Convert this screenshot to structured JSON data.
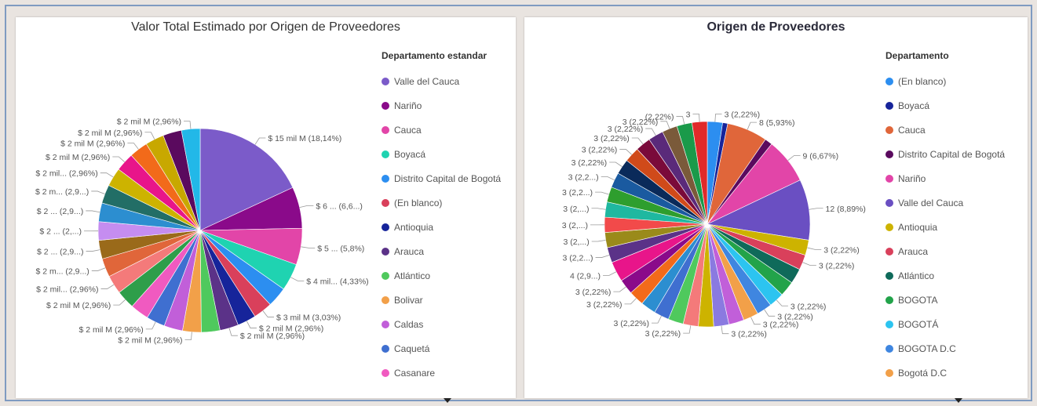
{
  "panels": {
    "left": {
      "legend_title": "Departamento estandar",
      "legend": [
        {
          "label": "Valle del Cauca",
          "color": "#7b5bc9"
        },
        {
          "label": "Nariño",
          "color": "#8a0a8a"
        },
        {
          "label": "Cauca",
          "color": "#e245a8"
        },
        {
          "label": "Boyacá",
          "color": "#1fd3b1"
        },
        {
          "label": "Distrito Capital de Bogotá",
          "color": "#2c8ef0"
        },
        {
          "label": "(En blanco)",
          "color": "#d9405b"
        },
        {
          "label": "Antioquia",
          "color": "#16249a"
        },
        {
          "label": "Arauca",
          "color": "#5b3288"
        },
        {
          "label": "Atlántico",
          "color": "#4fc95d"
        },
        {
          "label": "Bolivar",
          "color": "#f2a049"
        },
        {
          "label": "Caldas",
          "color": "#c15fd9"
        },
        {
          "label": "Caquetá",
          "color": "#3f6fd0"
        },
        {
          "label": "Casanare",
          "color": "#f05ac0"
        }
      ]
    },
    "right": {
      "legend_title": "Departamento",
      "legend": [
        {
          "label": "(En blanco)",
          "color": "#2c8ef0"
        },
        {
          "label": "Boyacá",
          "color": "#16249a"
        },
        {
          "label": "Cauca",
          "color": "#e0663a"
        },
        {
          "label": "Distrito Capital de Bogotá",
          "color": "#5a0a5e"
        },
        {
          "label": "Nariño",
          "color": "#e245a8"
        },
        {
          "label": "Valle del Cauca",
          "color": "#6a4fc2"
        },
        {
          "label": "Antioquia",
          "color": "#cdb300"
        },
        {
          "label": "Arauca",
          "color": "#d9405b"
        },
        {
          "label": "Atlántico",
          "color": "#0f6a5a"
        },
        {
          "label": "BOGOTA",
          "color": "#22a34a"
        },
        {
          "label": "BOGOTÁ",
          "color": "#2cc4f0"
        },
        {
          "label": "BOGOTA D.C",
          "color": "#3f86e0"
        },
        {
          "label": "Bogotá D.C",
          "color": "#f2a049"
        }
      ]
    }
  },
  "chart_data": [
    {
      "type": "pie",
      "title": "Valor Total Estimado por Origen de Proveedores",
      "legend_title": "Departamento estandar",
      "legend_position": "right",
      "slices": [
        {
          "label": "$ 15 mil M (18,14%)",
          "value": 18.14,
          "color": "#7b5bc9"
        },
        {
          "label": "$ 6 ... (6,6...)",
          "value": 6.6,
          "color": "#8a0a8a"
        },
        {
          "label": "$ 5 ... (5,8%)",
          "value": 5.8,
          "color": "#e245a8"
        },
        {
          "label": "$ 4 mil... (4,33%)",
          "value": 4.33,
          "color": "#1fd3b1"
        },
        {
          "label": "",
          "value": 3.2,
          "color": "#2c8ef0"
        },
        {
          "label": "$ 3 mil M (3,03%)",
          "value": 3.03,
          "color": "#d9405b"
        },
        {
          "label": "$ 2 mil M (2,96%)",
          "value": 2.96,
          "color": "#16249a"
        },
        {
          "label": "$ 2 mil M (2,96%)",
          "value": 2.96,
          "color": "#5b3288"
        },
        {
          "label": "",
          "value": 2.96,
          "color": "#4fc95d"
        },
        {
          "label": "$ 2 mil M (2,96%)",
          "value": 2.96,
          "color": "#f2a049"
        },
        {
          "label": "",
          "value": 2.96,
          "color": "#c15fd9"
        },
        {
          "label": "$ 2 mil M (2,96%)",
          "value": 2.96,
          "color": "#3f6fd0"
        },
        {
          "label": "",
          "value": 2.96,
          "color": "#f05ac0"
        },
        {
          "label": "$ 2 mil M (2,96%)",
          "value": 2.96,
          "color": "#2e9e4a"
        },
        {
          "label": "$ 2 mil... (2,96%)",
          "value": 2.96,
          "color": "#f47a7a"
        },
        {
          "label": "$ 2 m... (2,9...)",
          "value": 2.96,
          "color": "#e0663a"
        },
        {
          "label": "$ 2 ... (2,9...)",
          "value": 2.96,
          "color": "#9a6a1a"
        },
        {
          "label": "$ 2 ... (2,...)",
          "value": 2.96,
          "color": "#c58df0"
        },
        {
          "label": "$ 2 ... (2,9...)",
          "value": 2.96,
          "color": "#2c8ed0"
        },
        {
          "label": "$ 2 m... (2,9...)",
          "value": 2.96,
          "color": "#226e66"
        },
        {
          "label": "$ 2 mil... (2,96%)",
          "value": 2.96,
          "color": "#cdb300"
        },
        {
          "label": "$ 2 mil M (2,96%)",
          "value": 2.96,
          "color": "#e8158a"
        },
        {
          "label": "$ 2 mil M (2,96%)",
          "value": 2.96,
          "color": "#f26a1a"
        },
        {
          "label": "$ 2 mil M (2,96%)",
          "value": 2.96,
          "color": "#c8a800"
        },
        {
          "label": "",
          "value": 2.96,
          "color": "#5a0a5e"
        },
        {
          "label": "$ 2 mil M (2,96%)",
          "value": 2.96,
          "color": "#22b8e8"
        }
      ]
    },
    {
      "type": "pie",
      "title": "Origen de Proveedores",
      "legend_title": "Departamento",
      "legend_position": "right",
      "slices": [
        {
          "label": "3 (2,22%)",
          "value": 3,
          "color": "#2c8ef0"
        },
        {
          "label": "",
          "value": 1,
          "color": "#16249a"
        },
        {
          "label": "8 (5,93%)",
          "value": 8,
          "color": "#e0663a"
        },
        {
          "label": "",
          "value": 1.5,
          "color": "#5a0a5e"
        },
        {
          "label": "9 (6,67%)",
          "value": 9,
          "color": "#e245a8"
        },
        {
          "label": "12 (8,89%)",
          "value": 12,
          "color": "#6a4fc2"
        },
        {
          "label": "3 (2,22%)",
          "value": 3,
          "color": "#cdb300"
        },
        {
          "label": "3 (2,22%)",
          "value": 3,
          "color": "#d9405b"
        },
        {
          "label": "",
          "value": 3,
          "color": "#0f6a5a"
        },
        {
          "label": "",
          "value": 3,
          "color": "#22a34a"
        },
        {
          "label": "3 (2,22%)",
          "value": 3,
          "color": "#2cc4f0"
        },
        {
          "label": "3 (2,22%)",
          "value": 3,
          "color": "#3f86e0"
        },
        {
          "label": "3 (2,22%)",
          "value": 3,
          "color": "#f2a049"
        },
        {
          "label": "",
          "value": 3,
          "color": "#c15fd9"
        },
        {
          "label": "3 (2,22%)",
          "value": 3,
          "color": "#8a7ae0"
        },
        {
          "label": "",
          "value": 3,
          "color": "#cdb300"
        },
        {
          "label": "3 (2,22%)",
          "value": 3,
          "color": "#f47a7a"
        },
        {
          "label": "",
          "value": 3,
          "color": "#4fc95d"
        },
        {
          "label": "3 (2,22%)",
          "value": 3,
          "color": "#3f6fd0"
        },
        {
          "label": "",
          "value": 3,
          "color": "#2c8ed0"
        },
        {
          "label": "3 (2,22%)",
          "value": 3,
          "color": "#f26a1a"
        },
        {
          "label": "3 (2,22%)",
          "value": 3,
          "color": "#8a0a8a"
        },
        {
          "label": "4 (2,9...)",
          "value": 4,
          "color": "#e8158a"
        },
        {
          "label": "3 (2,2...)",
          "value": 3,
          "color": "#5b3288"
        },
        {
          "label": "3 (2,...)",
          "value": 3,
          "color": "#9a8a1a"
        },
        {
          "label": "3 (2,...)",
          "value": 3,
          "color": "#f24a4a"
        },
        {
          "label": "3 (2,...)",
          "value": 3,
          "color": "#1fb8a0"
        },
        {
          "label": "3 (2,2...)",
          "value": 3,
          "color": "#2e9e2e"
        },
        {
          "label": "3 (2,2...)",
          "value": 3,
          "color": "#1a5aa0"
        },
        {
          "label": "3 (2,22%)",
          "value": 3,
          "color": "#0a2a5a"
        },
        {
          "label": "3 (2,22%)",
          "value": 3,
          "color": "#d04a1a"
        },
        {
          "label": "3 (2,22%)",
          "value": 3,
          "color": "#7a0a3a"
        },
        {
          "label": "3 (2,22%)",
          "value": 3,
          "color": "#5a2a7a"
        },
        {
          "label": "3 (2,22%)",
          "value": 3,
          "color": "#7a5a3a"
        },
        {
          "label": "(2,22%)",
          "value": 3,
          "color": "#1a9a4a"
        },
        {
          "label": "3",
          "value": 3,
          "color": "#e02a2a"
        }
      ]
    }
  ]
}
